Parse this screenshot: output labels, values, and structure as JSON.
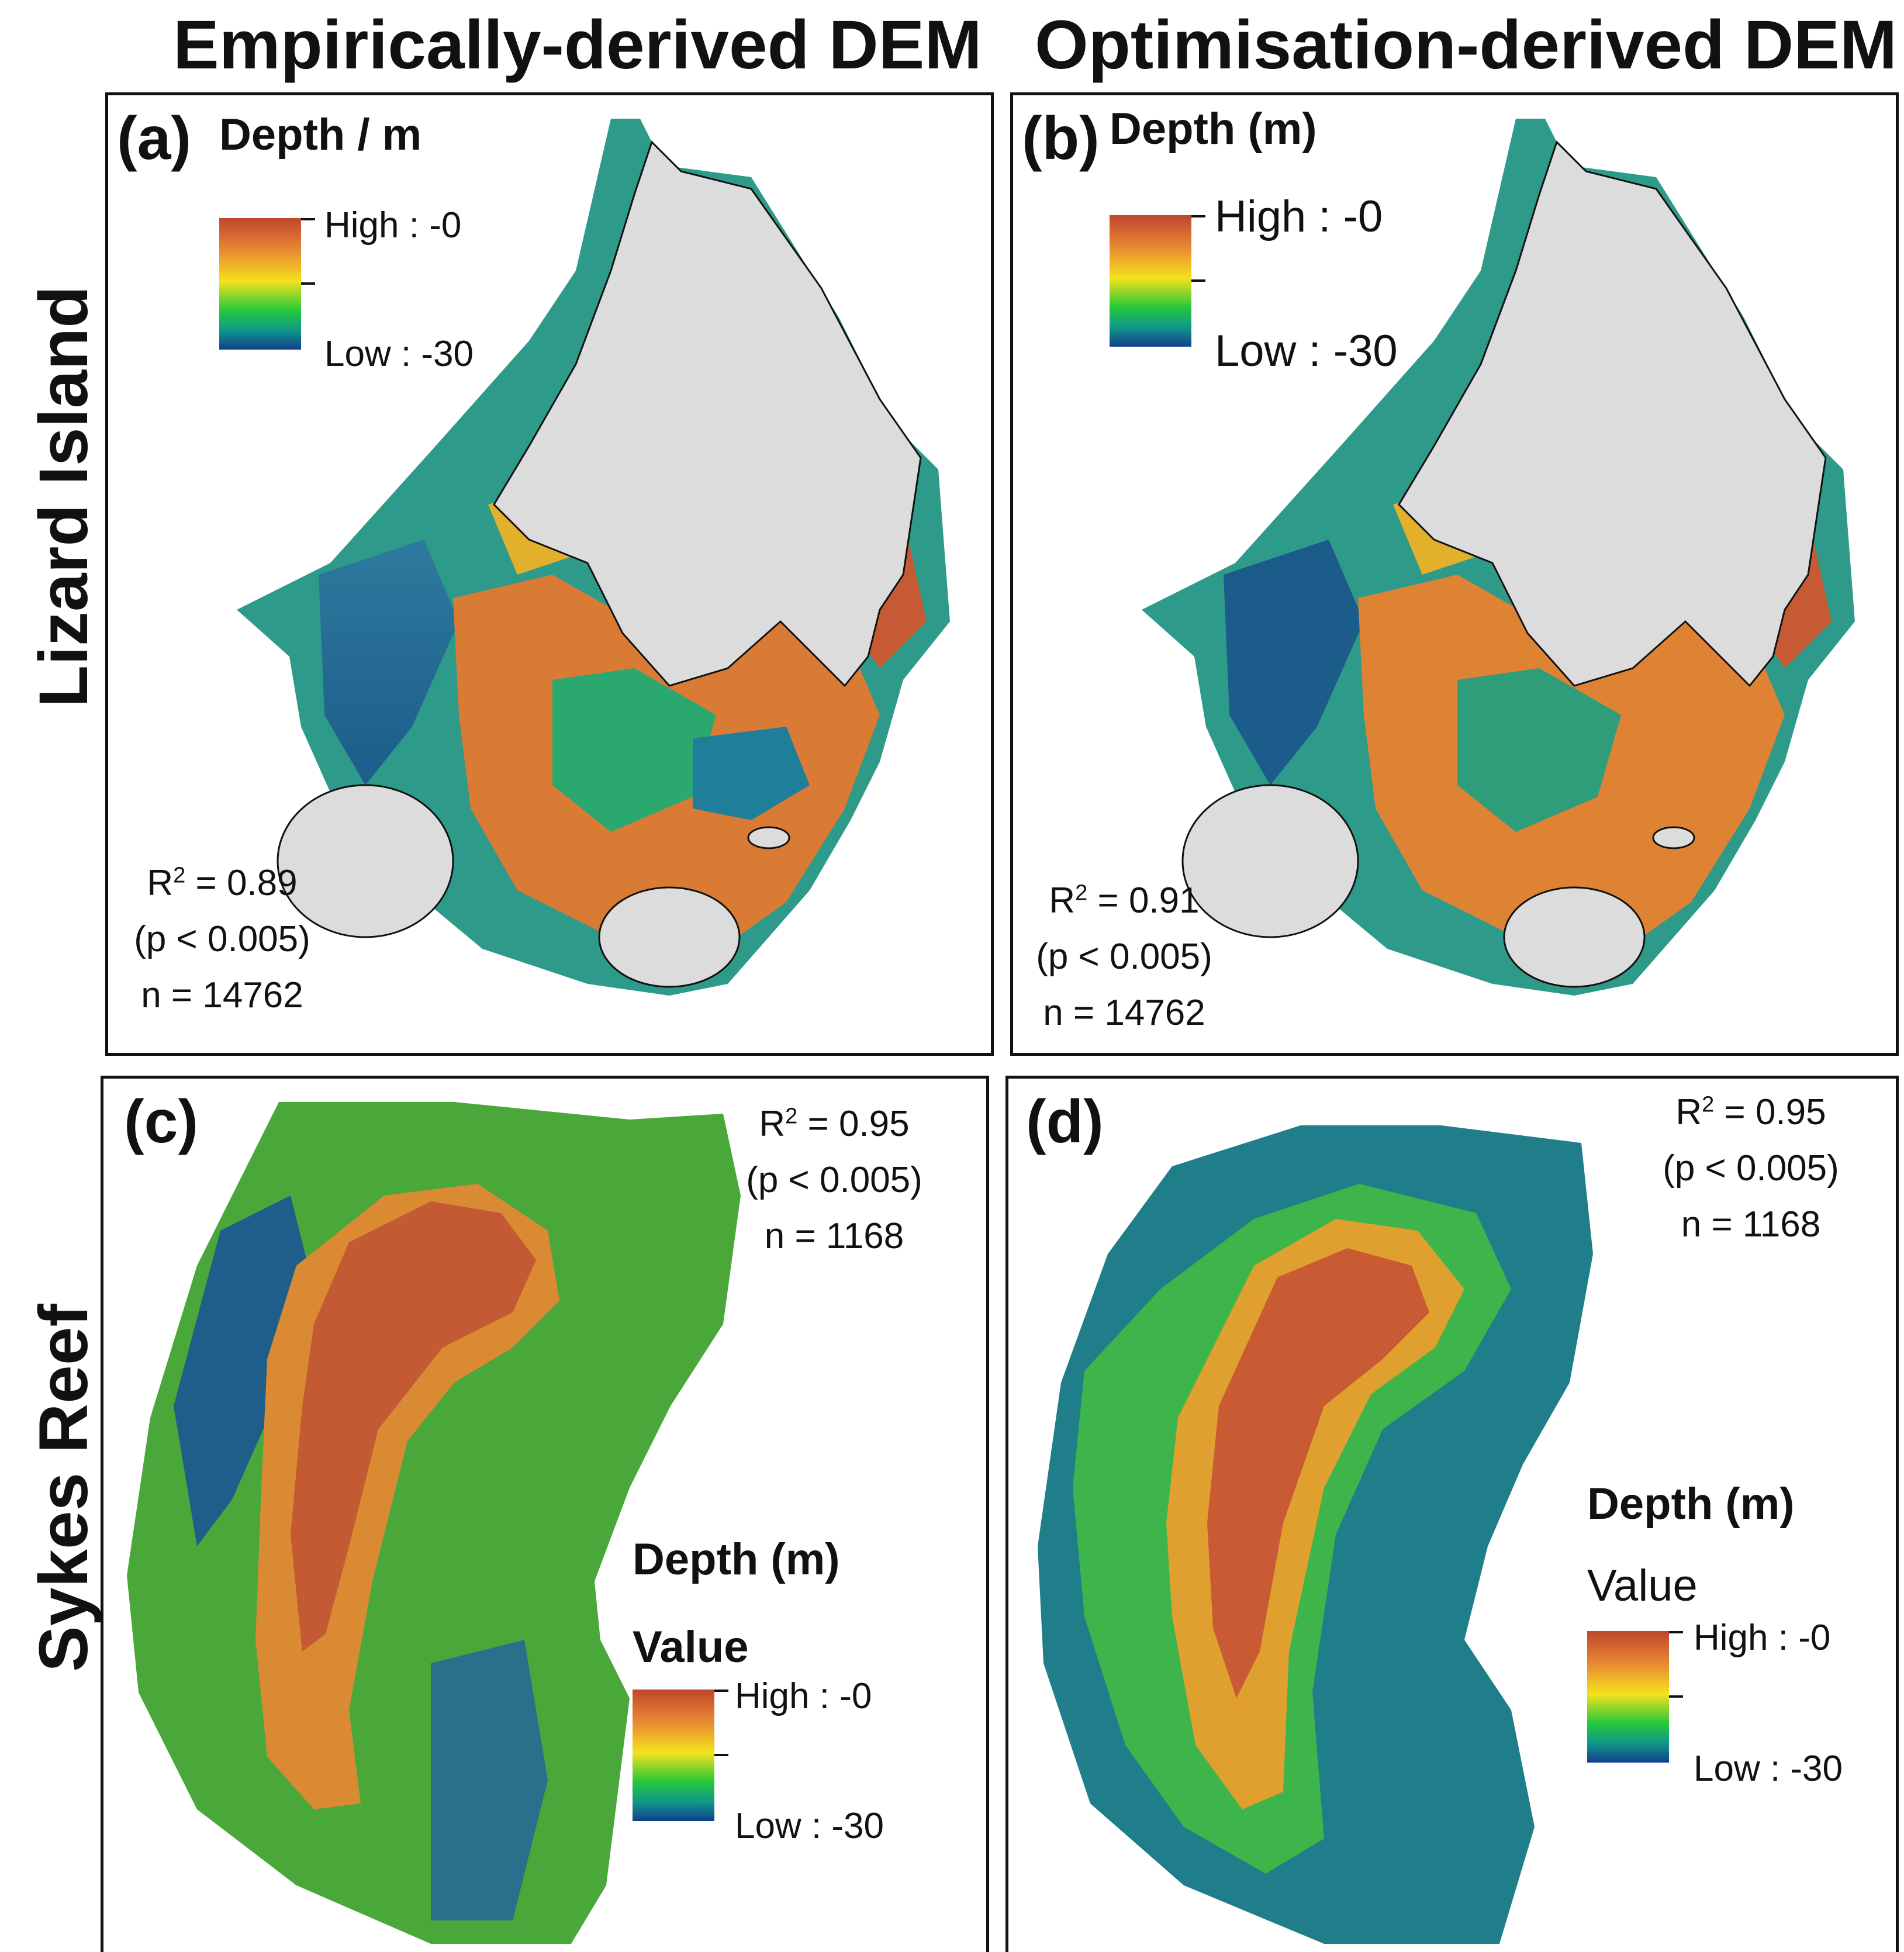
{
  "columns": {
    "left_title": "Empirically-derived DEM",
    "right_title": "Optimisation-derived DEM"
  },
  "rows": {
    "top_title": "Lizard Island",
    "bottom_title": "Sykes Reef"
  },
  "panels": [
    {
      "label": "(a)",
      "legend_title": "Depth / m",
      "legend_value_label": "",
      "high_label": "High : -0",
      "low_label": "Low : -30",
      "r2_prefix": "R",
      "r2_sup": "2",
      "r2_value": " = 0.89",
      "p_text": "(p < 0.005)",
      "n_text": "n = 14762"
    },
    {
      "label": "(b)",
      "legend_title": "Depth (m)",
      "legend_value_label": "",
      "high_label": "High : -0",
      "low_label": "Low : -30",
      "r2_prefix": "R",
      "r2_sup": "2",
      "r2_value": " = 0.91",
      "p_text": "(p < 0.005)",
      "n_text": "n = 14762"
    },
    {
      "label": "(c)",
      "legend_title": "Depth (m)",
      "legend_value_label": "Value",
      "high_label": "High : -0",
      "low_label": "Low : -30",
      "r2_prefix": "R",
      "r2_sup": "2",
      "r2_value": " = 0.95",
      "p_text": "(p < 0.005)",
      "n_text": "n = 1168"
    },
    {
      "label": "(d)",
      "legend_title": "Depth (m)",
      "legend_value_label": "Value",
      "high_label": "High : -0",
      "low_label": "Low : -30",
      "r2_prefix": "R",
      "r2_sup": "2",
      "r2_value": " = 0.95",
      "p_text": "(p < 0.005)",
      "n_text": "n = 1168"
    }
  ],
  "colors": {
    "high": "#c0452e",
    "mid_high": "#e88a32",
    "mid": "#f4e21d",
    "mid_low": "#27c83a",
    "low": "#123f8c",
    "land": "#dcdcdc"
  }
}
